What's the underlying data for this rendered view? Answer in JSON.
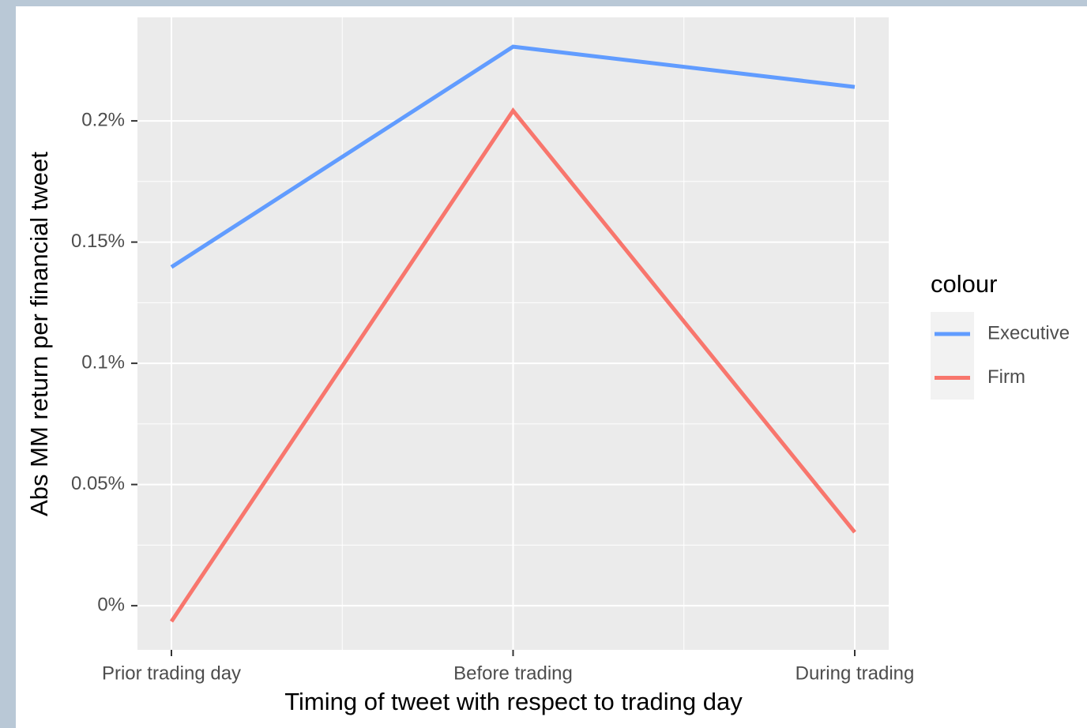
{
  "chart_data": {
    "type": "line",
    "x_label": "Timing of tweet with respect to trading day",
    "y_label": "Abs MM return per financial tweet",
    "categories": [
      "Prior trading day",
      "Before trading",
      "During trading"
    ],
    "series": [
      {
        "name": "Executive",
        "color": "#619cff",
        "values": [
          0.1397,
          0.2306,
          0.214
        ]
      },
      {
        "name": "Firm",
        "color": "#f8766d",
        "values": [
          -0.0065,
          0.2042,
          0.0303
        ]
      }
    ],
    "ylim": [
      -0.0182,
      0.2427
    ],
    "yticks": [
      {
        "value": 0,
        "label": "0%"
      },
      {
        "value": 0.05,
        "label": "0.05%"
      },
      {
        "value": 0.1,
        "label": "0.1%"
      },
      {
        "value": 0.15,
        "label": "0.15%"
      },
      {
        "value": 0.2,
        "label": "0.2%"
      }
    ],
    "legend_title": "colour",
    "legend_position": "right",
    "grid": true
  }
}
